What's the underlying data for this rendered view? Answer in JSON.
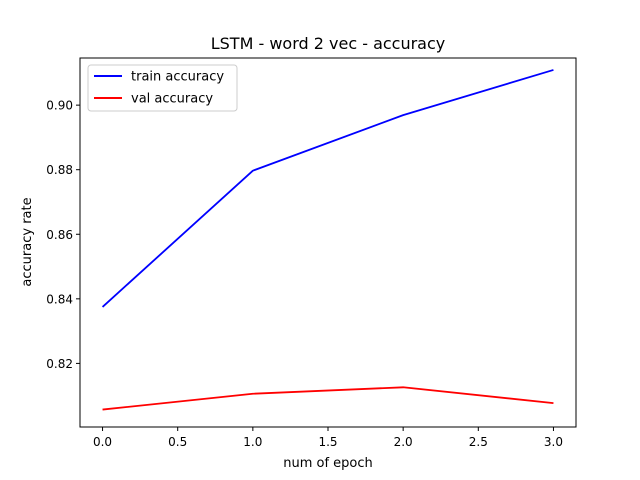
{
  "chart_data": {
    "type": "line",
    "title": "LSTM - word 2 vec - accuracy",
    "xlabel": "num of epoch",
    "ylabel": "accuracy rate",
    "x": [
      0,
      1,
      2,
      3
    ],
    "series": [
      {
        "name": "train accuracy",
        "color": "#0000ff",
        "values": [
          0.8375,
          0.8797,
          0.8969,
          0.9109
        ]
      },
      {
        "name": "val accuracy",
        "color": "#ff0000",
        "values": [
          0.8057,
          0.8106,
          0.8126,
          0.8077
        ]
      }
    ],
    "xlim": [
      -0.15,
      3.15
    ],
    "ylim": [
      0.8003,
      0.9146
    ],
    "xticks": [
      "0.0",
      "0.5",
      "1.0",
      "1.5",
      "2.0",
      "2.5",
      "3.0"
    ],
    "yticks": [
      "0.82",
      "0.84",
      "0.86",
      "0.88",
      "0.90"
    ],
    "grid": false,
    "legend_position": "upper left"
  }
}
